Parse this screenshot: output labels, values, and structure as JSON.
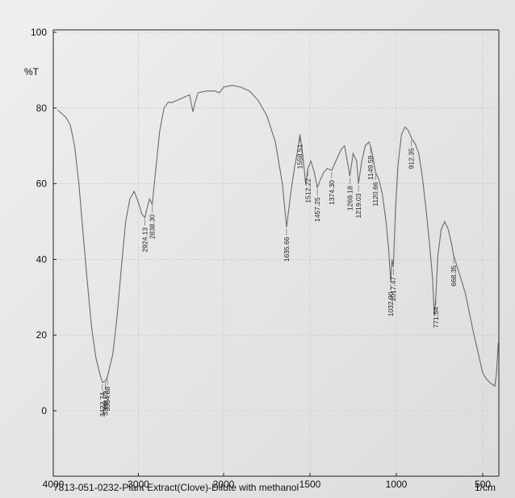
{
  "caption": "7813-051-0232-Plant Extract(Clove)-Dilute with methanol",
  "chart_data": {
    "type": "line",
    "title": "",
    "ylabel": "%T",
    "xunit": "1/cm",
    "xlim": [
      4000,
      400
    ],
    "ylim": [
      -15,
      100
    ],
    "x_ticks": [
      4000,
      3000,
      2000,
      1500,
      1000,
      500
    ],
    "y_ticks": [
      0,
      20,
      40,
      60,
      80,
      100
    ],
    "grid": true,
    "series": [
      {
        "x": [
          3950,
          3850,
          3800,
          3750,
          3700,
          3650,
          3600,
          3550,
          3500,
          3450,
          3422.74,
          3388.02,
          3364.88,
          3300,
          3250,
          3200,
          3150,
          3100,
          3050,
          3000,
          2960,
          2924.13,
          2900,
          2870,
          2838.3,
          2800,
          2750,
          2700,
          2650,
          2600,
          2500,
          2400,
          2360,
          2340,
          2300,
          2200,
          2100,
          2050,
          2000,
          1950,
          1900,
          1850,
          1800,
          1750,
          1700,
          1660,
          1635.66,
          1610,
          1590,
          1570,
          1558.51,
          1540,
          1525,
          1512.22,
          1495,
          1475,
          1457.25,
          1440,
          1420,
          1400,
          1374.3,
          1350,
          1320,
          1300,
          1280,
          1269.18,
          1250,
          1230,
          1219.03,
          1200,
          1180,
          1160,
          1149.59,
          1135,
          1120.66,
          1100,
          1080,
          1060,
          1045,
          1032.9,
          1025,
          1017.47,
          1005,
          990,
          970,
          950,
          930,
          912.35,
          890,
          870,
          850,
          830,
          810,
          790,
          780,
          771.54,
          760,
          740,
          720,
          700,
          680,
          668.35,
          640,
          600,
          560,
          520,
          500,
          480,
          460,
          445,
          430,
          420,
          410
        ],
        "y": [
          79.5,
          77.5,
          75.5,
          70,
          60,
          47,
          34,
          22,
          14,
          9.5,
          7.5,
          7.8,
          9,
          15,
          25,
          38,
          50,
          56,
          58,
          55,
          52,
          51,
          53.5,
          56,
          54.5,
          63,
          74,
          80,
          81.5,
          81.5,
          82.5,
          83.5,
          79,
          81,
          84,
          84.5,
          84.5,
          84,
          85.5,
          86,
          85.5,
          84.5,
          82,
          78,
          71,
          60,
          48.5,
          58,
          64,
          69,
          73,
          67,
          60,
          64,
          66,
          63,
          59,
          61,
          63,
          64,
          63.5,
          66,
          69,
          70,
          65,
          62,
          68,
          66,
          60,
          66,
          70,
          71,
          70,
          67,
          63,
          61,
          57,
          50,
          43,
          34,
          40,
          38,
          53,
          65,
          73,
          75,
          74,
          72,
          70.5,
          68,
          62,
          54,
          45,
          35,
          25,
          30,
          41,
          48,
          50,
          48,
          44,
          41,
          37,
          31,
          22,
          14,
          10,
          8.5,
          7.5,
          7,
          6.5,
          10,
          18
        ]
      }
    ],
    "peaks": [
      {
        "x": 3422.74,
        "label": "3422.74"
      },
      {
        "x": 3388.02,
        "label": "3388.02"
      },
      {
        "x": 3364.88,
        "label": "3364.88"
      },
      {
        "x": 2924.13,
        "label": "2924.13"
      },
      {
        "x": 2838.3,
        "label": "2838.30"
      },
      {
        "x": 1635.66,
        "label": "1635.66"
      },
      {
        "x": 1558.51,
        "label": "1558.51"
      },
      {
        "x": 1512.22,
        "label": "1512.22"
      },
      {
        "x": 1457.25,
        "label": "1457.25"
      },
      {
        "x": 1374.3,
        "label": "1374.30"
      },
      {
        "x": 1269.18,
        "label": "1269.18"
      },
      {
        "x": 1219.03,
        "label": "1219.03"
      },
      {
        "x": 1149.59,
        "label": "1149.59"
      },
      {
        "x": 1120.66,
        "label": "1120.66"
      },
      {
        "x": 1032.9,
        "label": "1032.90"
      },
      {
        "x": 1017.47,
        "label": "1017.47"
      },
      {
        "x": 912.35,
        "label": "912.35"
      },
      {
        "x": 771.54,
        "label": "771.54"
      },
      {
        "x": 668.35,
        "label": "668.35"
      }
    ]
  }
}
